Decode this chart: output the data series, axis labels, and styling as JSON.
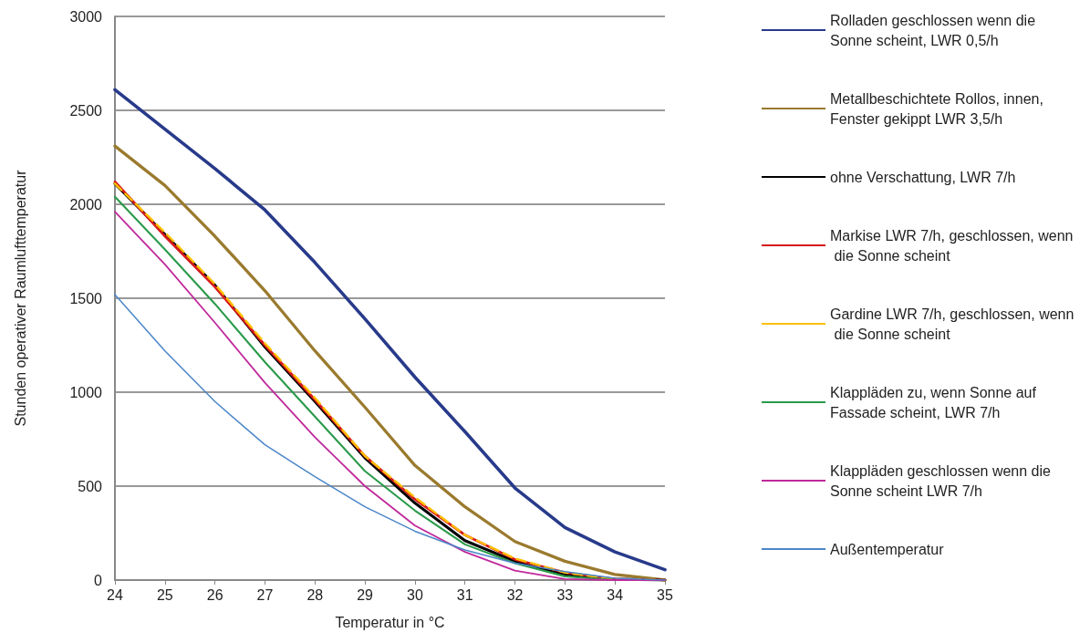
{
  "chart_data": {
    "type": "line",
    "xlabel": "Temperatur in °C",
    "ylabel": "Stunden operativer Raumlufttemperatur",
    "x": [
      24,
      25,
      26,
      27,
      28,
      29,
      30,
      31,
      32,
      33,
      34,
      35
    ],
    "xlim": [
      24,
      35
    ],
    "xticks": [
      24,
      25,
      26,
      27,
      28,
      29,
      30,
      31,
      32,
      33,
      34,
      35
    ],
    "ylim": [
      0,
      3000
    ],
    "yticks": [
      0,
      500,
      1000,
      1500,
      2000,
      2500,
      3000
    ],
    "grid": "y",
    "legend": "right",
    "marker": "none",
    "series": [
      {
        "name": "Rolladen geschlossen wenn die Sonne scheint, LWR 0,5/h",
        "color": "#283a8a",
        "values": [
          2610,
          2400,
          2190,
          1970,
          1690,
          1390,
          1080,
          790,
          490,
          280,
          150,
          55
        ]
      },
      {
        "name": "Metallbeschichtete Rollos, innen, Fenster gekippt LWR 3,5/h",
        "color": "#9a7a2e",
        "values": [
          2310,
          2100,
          1830,
          1540,
          1220,
          920,
          610,
          390,
          205,
          100,
          30,
          0
        ]
      },
      {
        "name": "ohne Verschattung, LWR 7/h",
        "color": "#000000",
        "values": [
          2110,
          1840,
          1570,
          1240,
          950,
          650,
          410,
          210,
          100,
          30,
          5,
          0
        ]
      },
      {
        "name": "Markise LWR 7/h, geschlossen, wenn die Sonne scheint",
        "color": "#d7191c",
        "values": [
          2120,
          1830,
          1560,
          1250,
          960,
          660,
          430,
          240,
          110,
          40,
          5,
          0
        ]
      },
      {
        "name": "Gardine LWR 7/h, geschlossen, wenn die Sonne scheint",
        "color": "#ffc000",
        "line_style": "dashed",
        "values": [
          2110,
          1850,
          1575,
          1260,
          970,
          660,
          440,
          240,
          115,
          40,
          5,
          0
        ]
      },
      {
        "name": "Klappläden zu, wenn Sonne auf Fassade scheint, LWR 7/h",
        "color": "#2a9a4a",
        "values": [
          2040,
          1760,
          1470,
          1160,
          870,
          580,
          370,
          190,
          90,
          20,
          0,
          0
        ]
      },
      {
        "name": "Klappläden geschlossen wenn die Sonne scheint LWR 7/h",
        "color": "#c0299b",
        "values": [
          1960,
          1680,
          1370,
          1050,
          760,
          500,
          290,
          150,
          50,
          5,
          0,
          0
        ]
      },
      {
        "name": "Außentemperatur",
        "color": "#4a86c8",
        "values": [
          1520,
          1220,
          950,
          720,
          550,
          390,
          260,
          160,
          90,
          45,
          10,
          0
        ]
      }
    ]
  }
}
